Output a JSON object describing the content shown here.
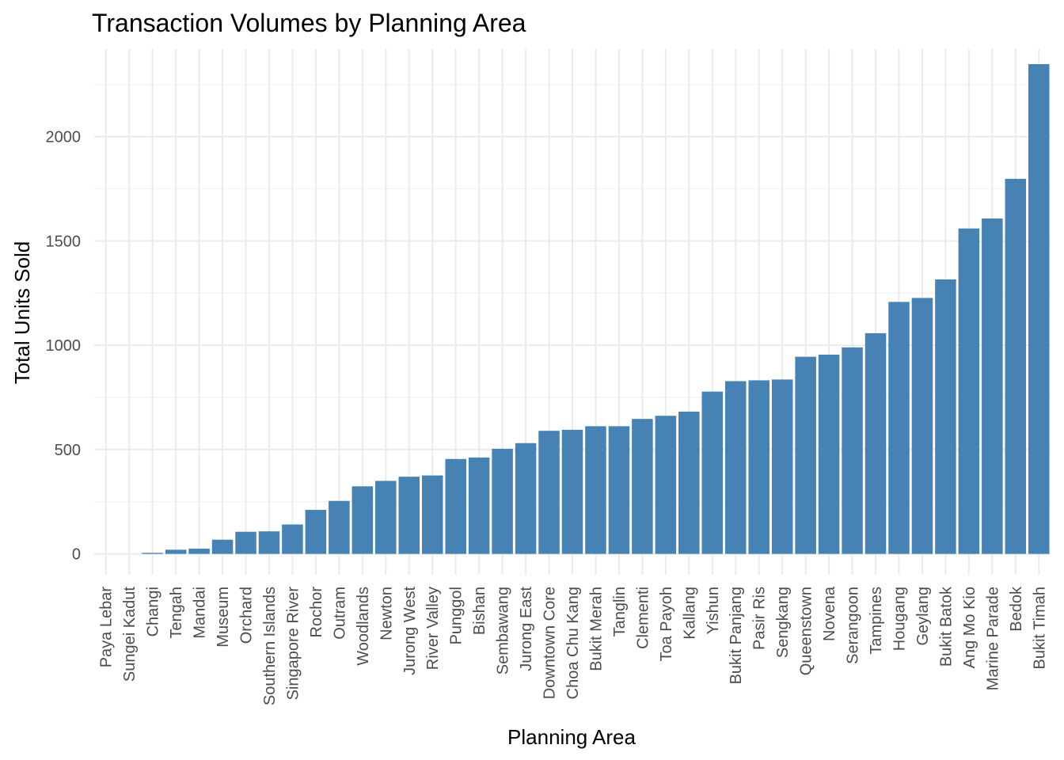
{
  "chart_data": {
    "type": "bar",
    "title": "Transaction Volumes by Planning Area",
    "xlabel": "Planning Area",
    "ylabel": "Total Units Sold",
    "ylim": [
      -100,
      2420
    ],
    "yticks": [
      0,
      500,
      1000,
      1500,
      2000
    ],
    "grid": true,
    "bar_color": "#4682B4",
    "categories": [
      "Paya Lebar",
      "Sungei Kadut",
      "Changi",
      "Tengah",
      "Mandai",
      "Museum",
      "Orchard",
      "Southern Islands",
      "Singapore River",
      "Rochor",
      "Outram",
      "Woodlands",
      "Newton",
      "Jurong West",
      "River Valley",
      "Punggol",
      "Bishan",
      "Sembawang",
      "Jurong East",
      "Downtown Core",
      "Choa Chu Kang",
      "Bukit Merah",
      "Tanglin",
      "Clementi",
      "Toa Payoh",
      "Kallang",
      "Yishun",
      "Bukit Panjang",
      "Pasir Ris",
      "Sengkang",
      "Queenstown",
      "Novena",
      "Serangoon",
      "Tampines",
      "Hougang",
      "Geylang",
      "Bukit Batok",
      "Ang Mo Kio",
      "Marine Parade",
      "Bedok",
      "Bukit Timah"
    ],
    "values": [
      0,
      0,
      5,
      20,
      25,
      68,
      106,
      108,
      141,
      211,
      254,
      324,
      350,
      370,
      376,
      455,
      462,
      504,
      531,
      590,
      595,
      612,
      612,
      647,
      662,
      682,
      778,
      828,
      832,
      836,
      945,
      955,
      990,
      1058,
      1208,
      1227,
      1316,
      1560,
      1608,
      1798,
      2348
    ]
  }
}
